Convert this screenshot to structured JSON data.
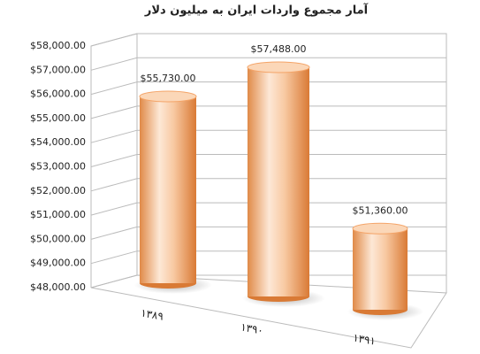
{
  "chart_data": {
    "type": "bar",
    "title": "آمار مجموع واردات ایران به میلیون دلار",
    "categories": [
      "۱۳۸۹",
      "۱۳۹۰",
      "۱۳۹۱"
    ],
    "values": [
      55730,
      57488,
      51360
    ],
    "value_labels": [
      "$55,730.00",
      "$57,488.00",
      "$51,360.00"
    ],
    "color": "#f4a468",
    "ylim": [
      48000,
      58000
    ],
    "yticks": [
      {
        "value": 48000,
        "label": "$48,000.00"
      },
      {
        "value": 49000,
        "label": "$49,000.00"
      },
      {
        "value": 50000,
        "label": "$50,000.00"
      },
      {
        "value": 51000,
        "label": "$51,000.00"
      },
      {
        "value": 52000,
        "label": "$52,000.00"
      },
      {
        "value": 53000,
        "label": "$53,000.00"
      },
      {
        "value": 54000,
        "label": "$54,000.00"
      },
      {
        "value": 55000,
        "label": "$55,000.00"
      },
      {
        "value": 56000,
        "label": "$56,000.00"
      },
      {
        "value": 57000,
        "label": "$57,000.00"
      },
      {
        "value": 58000,
        "label": "$58,000.00"
      }
    ],
    "grid": true
  }
}
